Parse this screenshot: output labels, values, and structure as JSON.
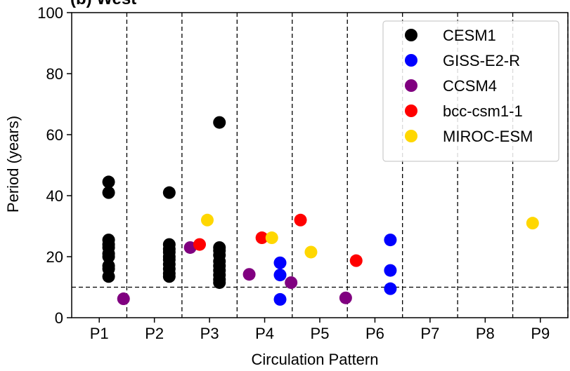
{
  "chart_data": {
    "type": "scatter",
    "title": "(b) West",
    "xlabel": "Circulation Pattern",
    "ylabel": "Period (years)",
    "categories": [
      "P1",
      "P2",
      "P3",
      "P4",
      "P5",
      "P6",
      "P7",
      "P8",
      "P9"
    ],
    "ylim": [
      0,
      100
    ],
    "yticks": [
      0,
      20,
      40,
      60,
      80,
      100
    ],
    "threshold_line": 10,
    "legend_position": "top-right",
    "grid": false,
    "series": [
      {
        "name": "CESM1",
        "color": "#000000",
        "points": [
          {
            "x": 0.67,
            "y": 13.5
          },
          {
            "x": 0.67,
            "y": 16
          },
          {
            "x": 0.67,
            "y": 17
          },
          {
            "x": 0.67,
            "y": 20
          },
          {
            "x": 0.67,
            "y": 21
          },
          {
            "x": 0.67,
            "y": 23
          },
          {
            "x": 0.67,
            "y": 24
          },
          {
            "x": 0.67,
            "y": 25.5
          },
          {
            "x": 0.67,
            "y": 41
          },
          {
            "x": 0.67,
            "y": 44.5
          },
          {
            "x": 1.77,
            "y": 13.5
          },
          {
            "x": 1.77,
            "y": 14.5
          },
          {
            "x": 1.77,
            "y": 16
          },
          {
            "x": 1.77,
            "y": 17.5
          },
          {
            "x": 1.77,
            "y": 19
          },
          {
            "x": 1.77,
            "y": 20
          },
          {
            "x": 1.77,
            "y": 21.5
          },
          {
            "x": 1.77,
            "y": 22.5
          },
          {
            "x": 1.77,
            "y": 24
          },
          {
            "x": 1.77,
            "y": 41
          },
          {
            "x": 2.68,
            "y": 11.5
          },
          {
            "x": 2.68,
            "y": 12.5
          },
          {
            "x": 2.68,
            "y": 14
          },
          {
            "x": 2.68,
            "y": 15.5
          },
          {
            "x": 2.68,
            "y": 17
          },
          {
            "x": 2.68,
            "y": 18.5
          },
          {
            "x": 2.68,
            "y": 20.5
          },
          {
            "x": 2.68,
            "y": 22
          },
          {
            "x": 2.68,
            "y": 23
          },
          {
            "x": 2.68,
            "y": 64
          }
        ]
      },
      {
        "name": "GISS-E2-R",
        "color": "#0000ff",
        "points": [
          {
            "x": 3.78,
            "y": 6
          },
          {
            "x": 3.78,
            "y": 14
          },
          {
            "x": 3.78,
            "y": 18
          },
          {
            "x": 5.78,
            "y": 9.5
          },
          {
            "x": 5.78,
            "y": 15.5
          },
          {
            "x": 5.78,
            "y": 25.5
          }
        ]
      },
      {
        "name": "CCSM4",
        "color": "#800080",
        "points": [
          {
            "x": 0.94,
            "y": 6.2
          },
          {
            "x": 2.15,
            "y": 23
          },
          {
            "x": 3.22,
            "y": 14.2
          },
          {
            "x": 3.98,
            "y": 11.5
          },
          {
            "x": 4.97,
            "y": 6.5
          }
        ]
      },
      {
        "name": "bcc-csm1-1",
        "color": "#ff0000",
        "points": [
          {
            "x": 2.32,
            "y": 24
          },
          {
            "x": 3.45,
            "y": 26.2
          },
          {
            "x": 4.15,
            "y": 32
          },
          {
            "x": 5.16,
            "y": 18.7
          }
        ]
      },
      {
        "name": "MIROC-ESM",
        "color": "#ffd700",
        "points": [
          {
            "x": 2.46,
            "y": 32
          },
          {
            "x": 3.63,
            "y": 26.2
          },
          {
            "x": 4.34,
            "y": 21.5
          },
          {
            "x": 8.36,
            "y": 31
          }
        ]
      }
    ]
  }
}
